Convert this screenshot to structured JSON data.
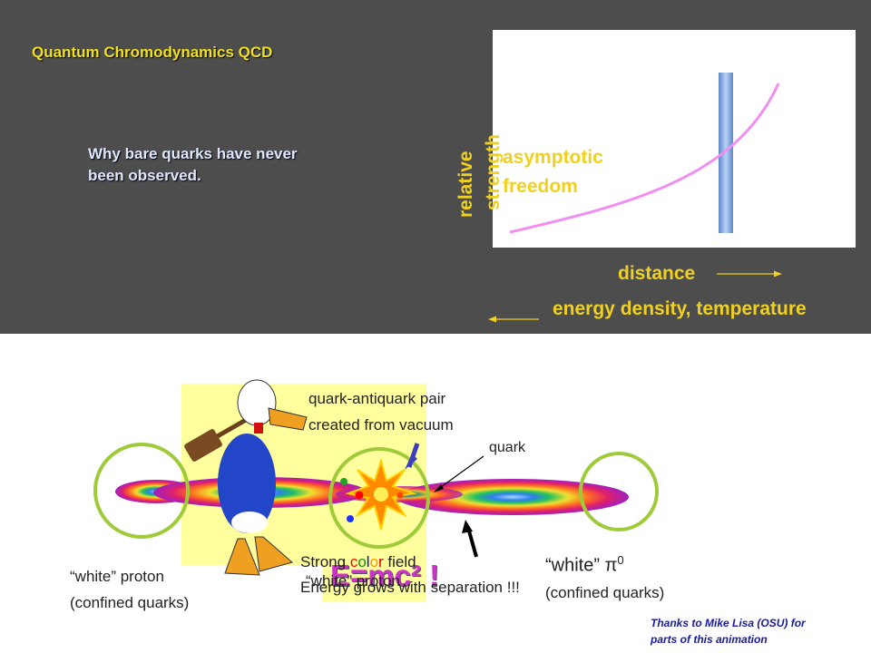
{
  "slide": {
    "title": "Quantum Chromodynamics  QCD",
    "subtitle": "Why bare quarks have never been observed.",
    "graph": {
      "y_label_1": "relative",
      "y_label_2": "strength",
      "curve_label_1": "asymptotic",
      "curve_label_2": "freedom",
      "x_label": "distance",
      "reverse_label": "energy density, temperature"
    },
    "diagram": {
      "pair_label_1": "quark-antiquark pair",
      "pair_label_2": "created from vacuum",
      "quark_label": "quark",
      "field_word_1": "Strong ",
      "field_color_letters": [
        "c",
        "o",
        "l",
        "o",
        "r"
      ],
      "field_color_values": [
        "#ff0000",
        "#1a8f1a",
        "#0000ff",
        "#ff9900",
        "#cc0000"
      ],
      "field_word_2": " field",
      "field_line_2": "Energy grows with separation !!!",
      "emc": "E=mc² !",
      "white_proton_center": "“white” proton",
      "left_label_1": "“white” proton",
      "left_label_2": "(confined quarks)",
      "right_label_1": "“white” π",
      "right_label_sup": "0",
      "right_label_2": "(confined quarks)",
      "thanks": "Thanks to Mike Lisa (OSU) for parts of this animation"
    }
  }
}
